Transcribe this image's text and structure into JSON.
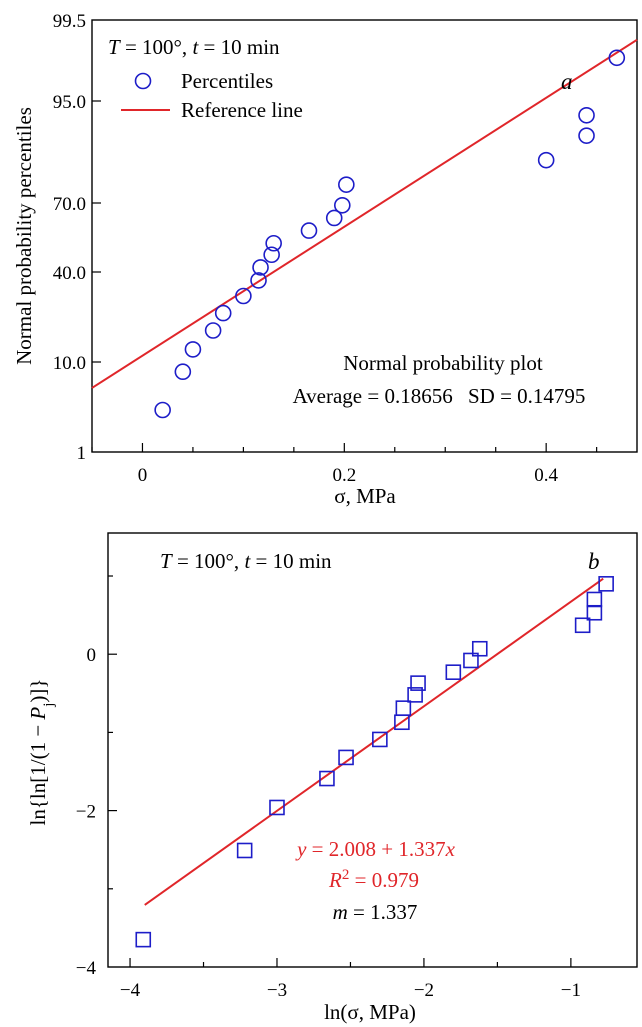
{
  "colors": {
    "marker": "#1d1dc8",
    "reference_line": "#e0262a",
    "equation_text": "#e0262a",
    "text": "#000000"
  },
  "chart_data": [
    {
      "type": "scatter",
      "panel_label": "a",
      "title": "",
      "condition": {
        "T_label": "T",
        "T_value": "= 100°,",
        "t_label": "t",
        "t_value": "= 10 min"
      },
      "xlabel": "σ, MPa",
      "ylabel": "Normal probability percentiles",
      "x_scale": "linear",
      "y_scale": "normal probability",
      "xlim": [
        -0.05,
        0.49
      ],
      "x_ticks": [
        0,
        0.2,
        0.4
      ],
      "x_tick_labels": [
        "0",
        "0.2",
        "0.4"
      ],
      "y_ticks": [
        1,
        10,
        40,
        70,
        95,
        99.5
      ],
      "y_tick_labels": [
        "1",
        "10.0",
        "40.0",
        "70.0",
        "95.0",
        "99.5"
      ],
      "grid": false,
      "legend_position": "top-left",
      "legend": {
        "points_label": "Percentiles",
        "line_label": "Reference line"
      },
      "marker": "circle",
      "series": [
        {
          "name": "Percentiles",
          "points": [
            [
              0.02,
              2.6
            ],
            [
              0.04,
              8.5
            ],
            [
              0.05,
              14.2
            ],
            [
              0.07,
              20.5
            ],
            [
              0.08,
              26.3
            ],
            [
              0.1,
              32.0
            ],
            [
              0.115,
              37.2
            ],
            [
              0.117,
              42.0
            ],
            [
              0.128,
              47.5
            ],
            [
              0.13,
              52.5
            ],
            [
              0.165,
              58.0
            ],
            [
              0.19,
              63.5
            ],
            [
              0.198,
              69.0
            ],
            [
              0.202,
              74.5
            ],
            [
              0.4,
              80.5
            ],
            [
              0.44,
              86.5
            ],
            [
              0.44,
              91.5
            ],
            [
              0.47,
              97.4
            ]
          ]
        },
        {
          "name": "Reference line",
          "type": "line",
          "points": [
            [
              -0.05,
              6.0
            ],
            [
              0.49,
              98.4
            ]
          ]
        }
      ],
      "annotation": {
        "plot_name": "Normal probability plot",
        "average_label": "Average = 0.18656",
        "sd_label": "SD = 0.14795"
      }
    },
    {
      "type": "scatter",
      "panel_label": "b",
      "title": "",
      "condition": {
        "T_label": "T",
        "T_value": "= 100°,",
        "t_label": "t",
        "t_value": "= 10 min"
      },
      "xlabel": "ln(σ, MPa)",
      "ylabel_parts": [
        "ln{ln[1/(1 − ",
        "P",
        "j",
        ")]}"
      ],
      "xlim": [
        -4.15,
        -0.55
      ],
      "ylim": [
        -4,
        1.55
      ],
      "x_ticks": [
        -4,
        -3,
        -2,
        -1
      ],
      "x_tick_labels": [
        "−4",
        "−3",
        "−2",
        "−1"
      ],
      "y_ticks": [
        -4,
        -2,
        0
      ],
      "y_tick_labels": [
        "−4",
        "−2",
        "0"
      ],
      "grid": false,
      "marker": "square",
      "series": [
        {
          "name": "data",
          "points": [
            [
              -3.91,
              -3.65
            ],
            [
              -3.22,
              -2.51
            ],
            [
              -3.0,
              -1.96
            ],
            [
              -2.66,
              -1.59
            ],
            [
              -2.53,
              -1.32
            ],
            [
              -2.3,
              -1.09
            ],
            [
              -2.15,
              -0.87
            ],
            [
              -2.14,
              -0.69
            ],
            [
              -2.06,
              -0.52
            ],
            [
              -2.04,
              -0.37
            ],
            [
              -1.8,
              -0.23
            ],
            [
              -1.68,
              -0.08
            ],
            [
              -1.62,
              0.07
            ],
            [
              -0.92,
              0.37
            ],
            [
              -0.84,
              0.53
            ],
            [
              -0.84,
              0.7
            ],
            [
              -0.76,
              0.9
            ]
          ]
        },
        {
          "name": "fit",
          "type": "line",
          "intercept": 2.008,
          "slope": 1.337,
          "x_range": [
            -3.9,
            -0.78
          ]
        }
      ],
      "annotation": {
        "equation_parts": [
          "y",
          " = 2.008 + 1.337",
          "x"
        ],
        "r2_parts": [
          "R",
          "2",
          " = 0.979"
        ],
        "m_parts": [
          "m",
          " = 1.337"
        ]
      }
    }
  ]
}
